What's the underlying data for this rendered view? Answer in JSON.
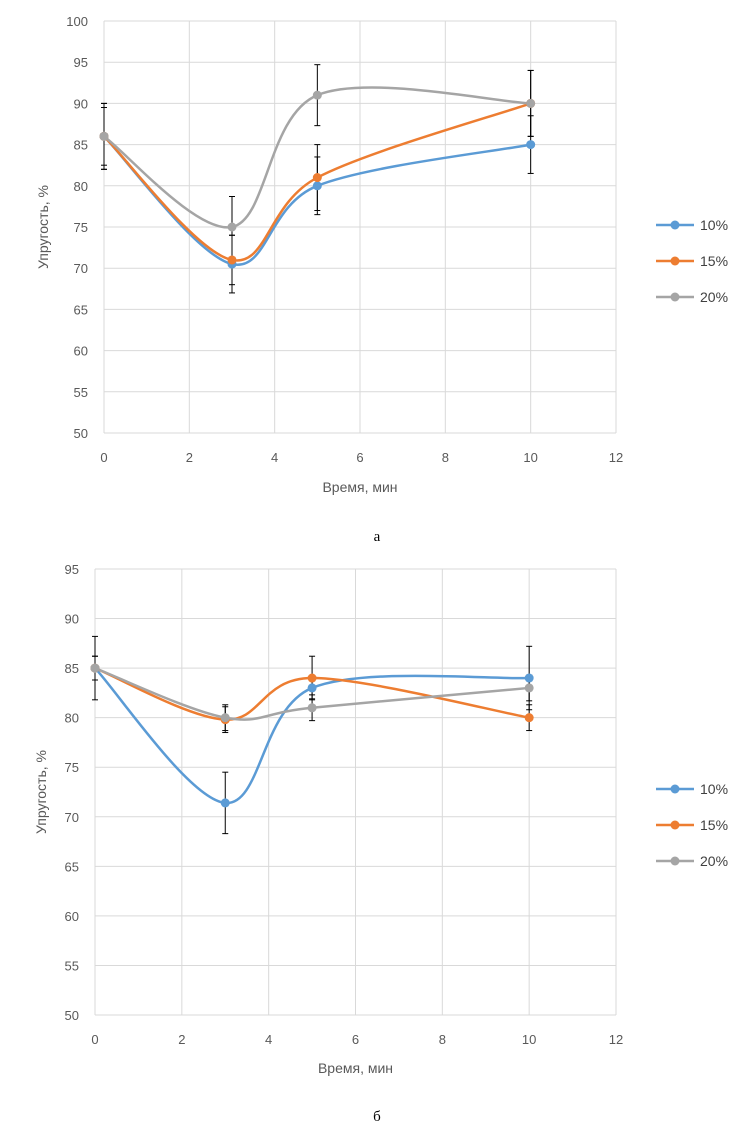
{
  "colors": {
    "s10": "#5B9BD5",
    "s15": "#ED7D31",
    "s20": "#A5A5A5",
    "grid": "#D9D9D9",
    "error": "#000000"
  },
  "chart_data": [
    {
      "type": "line",
      "panel_label": "а",
      "xlabel": "Время, мин",
      "ylabel": "Упругость, %",
      "xlim": [
        0,
        12
      ],
      "ylim": [
        50,
        100
      ],
      "xticks": [
        0,
        2,
        4,
        6,
        8,
        10,
        12
      ],
      "yticks": [
        50,
        55,
        60,
        65,
        70,
        75,
        80,
        85,
        90,
        95,
        100
      ],
      "grid": true,
      "smooth": true,
      "legend_position": "right",
      "x": [
        0,
        3,
        5,
        10
      ],
      "series": [
        {
          "name": "10%",
          "values": [
            86,
            70.5,
            80,
            85
          ],
          "errors": [
            4,
            3.5,
            3.5,
            3.5
          ]
        },
        {
          "name": "15%",
          "values": [
            86,
            71,
            81,
            90
          ],
          "errors": [
            4,
            3,
            4,
            4
          ]
        },
        {
          "name": "20%",
          "values": [
            86,
            75,
            91,
            90
          ],
          "errors": [
            3.5,
            3.7,
            3.7,
            4
          ]
        }
      ]
    },
    {
      "type": "line",
      "panel_label": "б",
      "xlabel": "Время, мин",
      "ylabel": "Упругость, %",
      "xlim": [
        0,
        12
      ],
      "ylim": [
        50,
        95
      ],
      "xticks": [
        0,
        2,
        4,
        6,
        8,
        10,
        12
      ],
      "yticks": [
        50,
        55,
        60,
        65,
        70,
        75,
        80,
        85,
        90,
        95
      ],
      "grid": true,
      "smooth": true,
      "legend_position": "right",
      "x": [
        0,
        3,
        5,
        10
      ],
      "series": [
        {
          "name": "10%",
          "values": [
            85,
            71.4,
            83,
            84
          ],
          "errors": [
            3.2,
            3.1,
            1.1,
            3.2
          ]
        },
        {
          "name": "15%",
          "values": [
            85,
            79.8,
            84,
            80
          ],
          "errors": [
            1.2,
            1.3,
            2.2,
            1.3
          ]
        },
        {
          "name": "20%",
          "values": [
            85,
            80,
            81,
            83
          ],
          "errors": [
            1.2,
            1.3,
            1.3,
            1.3
          ]
        }
      ]
    }
  ]
}
